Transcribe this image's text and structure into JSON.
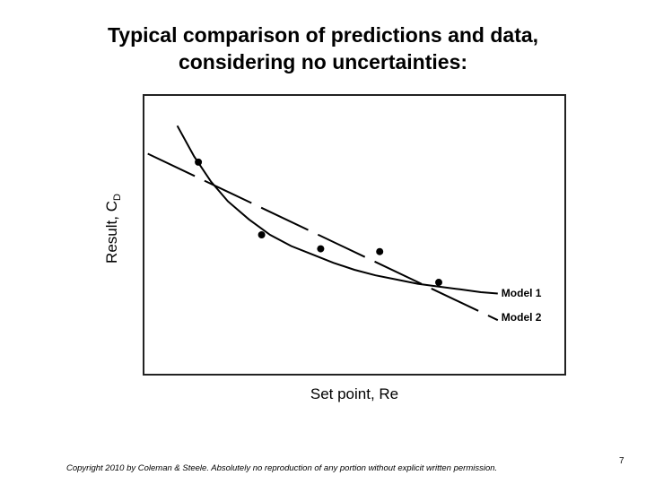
{
  "slide": {
    "title_line1": "Typical comparison of predictions and data,",
    "title_line2": "considering no uncertainties:",
    "copyright": "Copyright 2010 by Coleman & Steele.  Absolutely no reproduction of any portion without explicit written permission.",
    "page_number": "7"
  },
  "chart_data": {
    "type": "scatter",
    "xlabel": "Set point, Re",
    "ylabel_main": "Result, C",
    "ylabel_sub": "D",
    "xlim": [
      0,
      10
    ],
    "ylim": [
      0,
      10
    ],
    "ticks": "none",
    "grid": false,
    "points": [
      {
        "x": 1.3,
        "y": 7.6
      },
      {
        "x": 2.8,
        "y": 5.0
      },
      {
        "x": 4.2,
        "y": 4.5
      },
      {
        "x": 5.6,
        "y": 4.4
      },
      {
        "x": 7.0,
        "y": 3.3
      }
    ],
    "series": [
      {
        "name": "Model 1",
        "style": "solid curve",
        "x": [
          0.8,
          1.2,
          1.6,
          2.0,
          2.5,
          3.0,
          3.5,
          4.0,
          4.5,
          5.0,
          5.5,
          6.0,
          6.5,
          7.0,
          7.5,
          8.0,
          8.4
        ],
        "y": [
          8.9,
          7.8,
          6.9,
          6.2,
          5.55,
          5.0,
          4.6,
          4.3,
          4.0,
          3.75,
          3.55,
          3.4,
          3.25,
          3.15,
          3.05,
          2.95,
          2.9
        ]
      },
      {
        "name": "Model 2",
        "style": "dashed line",
        "x": [
          0.1,
          8.4
        ],
        "y": [
          7.9,
          1.95
        ]
      }
    ],
    "legend": "inline labels at right end of each curve"
  }
}
